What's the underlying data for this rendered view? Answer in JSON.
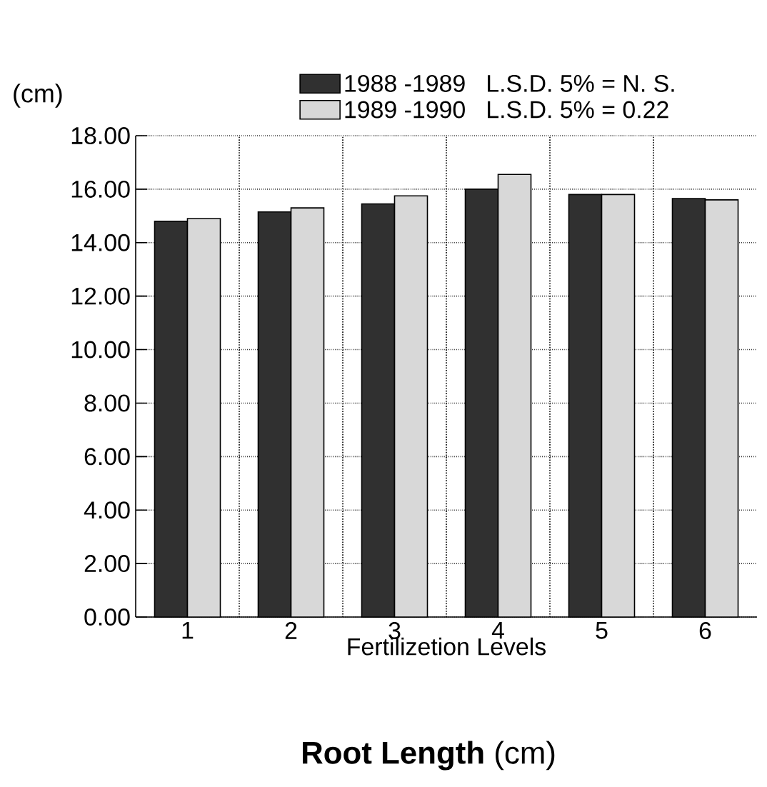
{
  "chart_data": {
    "type": "bar",
    "title": "**Root Length** (cm)",
    "xlabel": "Fertilizetion Levels",
    "ylabel": "(cm)",
    "categories": [
      "1",
      "2",
      "3",
      "4",
      "5",
      "6"
    ],
    "series": [
      {
        "name": "1988 -1989",
        "color": "#303030",
        "values": [
          14.8,
          15.15,
          15.45,
          16.0,
          15.8,
          15.65
        ]
      },
      {
        "name": "1989 -1990",
        "color": "#d8d8d8",
        "values": [
          14.9,
          15.3,
          15.75,
          16.55,
          15.8,
          15.6
        ]
      }
    ],
    "annotations": [
      "L.S.D. 5% = N. S.",
      "L.S.D. 5% = 0.22"
    ],
    "ylim": [
      0,
      18
    ],
    "yticks": [
      {
        "value": 0,
        "label": "0.00"
      },
      {
        "value": 2,
        "label": "2.00"
      },
      {
        "value": 4,
        "label": "4.00"
      },
      {
        "value": 6,
        "label": "6.00"
      },
      {
        "value": 8,
        "label": "8.00"
      },
      {
        "value": 10,
        "label": "10.00"
      },
      {
        "value": 12,
        "label": "12.00"
      },
      {
        "value": 14,
        "label": "14.00"
      },
      {
        "value": 16,
        "label": "16.00"
      },
      {
        "value": 18,
        "label": "18.00"
      }
    ],
    "grid": true,
    "legend": "top"
  }
}
